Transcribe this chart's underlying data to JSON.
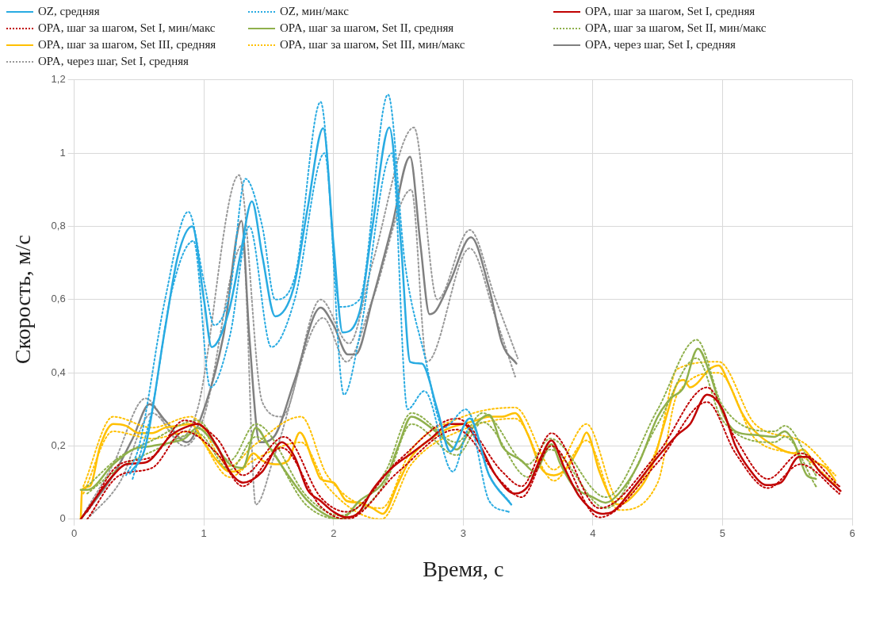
{
  "chart_data": {
    "type": "line",
    "xlabel": "Время, с",
    "ylabel": "Скорость, м/с",
    "xlim": [
      0,
      6
    ],
    "xticks": [
      0,
      1,
      2,
      3,
      4,
      5,
      6
    ],
    "ylim": [
      0,
      1.2
    ],
    "yticks": [
      0,
      {
        "value": 0.2,
        "label": "0,2"
      },
      {
        "value": 0.4,
        "label": "0,4"
      },
      {
        "value": 0.6,
        "label": "0,6"
      },
      {
        "value": 0.8,
        "label": "0,8"
      },
      1,
      {
        "value": 1.2,
        "label": "1,2"
      }
    ],
    "grid": true,
    "legend": "top",
    "marker": "none",
    "line_style": "solid",
    "series": [
      {
        "name": "OZ, средняя",
        "color": "#29abe2",
        "x": [
          0.43,
          0.55,
          0.7,
          0.8,
          0.91,
          1.0,
          1.06,
          1.19,
          1.28,
          1.37,
          1.45,
          1.55,
          1.69,
          1.8,
          1.92,
          2.0,
          2.07,
          2.2,
          2.3,
          2.43,
          2.52,
          2.59,
          2.68,
          2.8,
          2.9,
          3.05,
          3.2,
          3.37
        ],
        "values": [
          0.125,
          0.2,
          0.52,
          0.72,
          0.8,
          0.6,
          0.47,
          0.565,
          0.72,
          0.868,
          0.72,
          0.554,
          0.63,
          0.85,
          1.068,
          0.75,
          0.51,
          0.565,
          0.8,
          1.07,
          0.75,
          0.43,
          0.425,
          0.3,
          0.185,
          0.275,
          0.12,
          0.04
        ]
      },
      {
        "name": "OZ, мин/макс",
        "color": "#29abe2",
        "line_style": "dotted",
        "x": [
          0.4,
          0.5,
          0.7,
          0.88,
          1.0,
          1.08,
          1.2,
          1.32,
          1.45,
          1.55,
          1.7,
          1.9,
          2.05,
          2.2,
          2.42,
          2.55,
          2.7,
          2.85,
          3.02,
          3.2,
          3.35
        ],
        "values": [
          0.12,
          0.2,
          0.6,
          0.84,
          0.65,
          0.53,
          0.62,
          0.93,
          0.8,
          0.6,
          0.66,
          1.14,
          0.58,
          0.6,
          1.16,
          0.7,
          0.45,
          0.25,
          0.3,
          0.12,
          0.05
        ]
      },
      {
        "color": "#29abe2",
        "line_style": "dotted",
        "x": [
          0.45,
          0.6,
          0.75,
          0.92,
          1.05,
          1.2,
          1.35,
          1.52,
          1.7,
          1.93,
          2.08,
          2.2,
          2.45,
          2.57,
          2.7,
          2.92,
          3.05,
          3.2,
          3.35
        ],
        "values": [
          0.11,
          0.3,
          0.62,
          0.76,
          0.36,
          0.5,
          0.8,
          0.47,
          0.6,
          1.0,
          0.34,
          0.5,
          1.0,
          0.3,
          0.35,
          0.13,
          0.25,
          0.05,
          0.02
        ]
      },
      {
        "name": "OPA, шаг за шагом, Set I, средняя",
        "color": "#c00000",
        "x": [
          0.05,
          0.3,
          0.4,
          0.55,
          0.75,
          0.85,
          0.95,
          1.1,
          1.2,
          1.3,
          1.45,
          1.6,
          1.7,
          1.8,
          1.9,
          2.0,
          2.1,
          2.2,
          2.3,
          2.45,
          2.6,
          2.75,
          2.9,
          3.0,
          3.1,
          3.25,
          3.4,
          3.5,
          3.6,
          3.68,
          3.78,
          3.9,
          4.07,
          4.15,
          4.3,
          4.5,
          4.65,
          4.75,
          4.88,
          5.0,
          5.1,
          5.2,
          5.34,
          5.45,
          5.59,
          5.65,
          5.75,
          5.91
        ],
        "values": [
          0,
          0.12,
          0.15,
          0.155,
          0.23,
          0.25,
          0.26,
          0.2,
          0.13,
          0.1,
          0.13,
          0.21,
          0.17,
          0.08,
          0.05,
          0.02,
          0.005,
          0.02,
          0.08,
          0.14,
          0.18,
          0.22,
          0.26,
          0.26,
          0.22,
          0.12,
          0.07,
          0.09,
          0.17,
          0.215,
          0.14,
          0.06,
          0.015,
          0.02,
          0.08,
          0.17,
          0.23,
          0.26,
          0.34,
          0.3,
          0.2,
          0.14,
          0.093,
          0.1,
          0.17,
          0.17,
          0.13,
          0.077
        ]
      },
      {
        "name": "OPA, шаг за шагом, Set I, мин/макс",
        "color": "#c00000",
        "line_style": "dotted",
        "x": [
          0.1,
          0.35,
          0.6,
          0.85,
          1.1,
          1.3,
          1.62,
          1.9,
          2.1,
          2.5,
          2.95,
          3.3,
          3.45,
          3.68,
          4.05,
          4.5,
          4.88,
          5.1,
          5.35,
          5.6,
          5.9
        ],
        "values": [
          0.02,
          0.15,
          0.17,
          0.27,
          0.22,
          0.12,
          0.225,
          0.06,
          0.02,
          0.16,
          0.275,
          0.13,
          0.09,
          0.235,
          0.03,
          0.18,
          0.36,
          0.22,
          0.11,
          0.18,
          0.09
        ]
      },
      {
        "color": "#c00000",
        "line_style": "dotted",
        "x": [
          0.1,
          0.35,
          0.6,
          0.85,
          1.1,
          1.3,
          1.6,
          1.9,
          2.1,
          2.5,
          2.95,
          3.3,
          3.45,
          3.68,
          4.05,
          4.5,
          4.88,
          5.1,
          5.35,
          5.6,
          5.9
        ],
        "values": [
          0,
          0.12,
          0.14,
          0.24,
          0.18,
          0.09,
          0.195,
          0.035,
          0,
          0.13,
          0.245,
          0.1,
          0.06,
          0.2,
          0.005,
          0.155,
          0.32,
          0.18,
          0.085,
          0.15,
          0.07
        ]
      },
      {
        "name": "OPA, шаг за шагом, Set II, средняя",
        "color": "#8fb04c",
        "x": [
          0.05,
          0.1,
          0.3,
          0.45,
          0.6,
          0.75,
          0.85,
          0.95,
          1.05,
          1.2,
          1.3,
          1.4,
          1.5,
          1.65,
          1.8,
          1.95,
          2.05,
          2.2,
          2.4,
          2.5,
          2.6,
          2.75,
          2.85,
          2.95,
          3.05,
          3.2,
          3.3,
          3.45,
          3.55,
          3.68,
          3.75,
          3.85,
          4.0,
          4.1,
          4.2,
          4.35,
          4.5,
          4.6,
          4.7,
          4.81,
          4.9,
          5.0,
          5.1,
          5.25,
          5.4,
          5.48,
          5.55,
          5.65,
          5.72
        ],
        "values": [
          0.08,
          0.08,
          0.15,
          0.19,
          0.2,
          0.21,
          0.22,
          0.25,
          0.22,
          0.15,
          0.14,
          0.25,
          0.2,
          0.12,
          0.05,
          0.01,
          0,
          0.05,
          0.11,
          0.2,
          0.28,
          0.25,
          0.22,
          0.19,
          0.24,
          0.285,
          0.2,
          0.16,
          0.13,
          0.205,
          0.15,
          0.09,
          0.06,
          0.045,
          0.07,
          0.15,
          0.28,
          0.33,
          0.36,
          0.466,
          0.4,
          0.29,
          0.24,
          0.23,
          0.225,
          0.24,
          0.21,
          0.12,
          0.11
        ]
      },
      {
        "name": "OPA, шаг за шагом, Set II, мин/макс",
        "color": "#8fb04c",
        "line_style": "dotted",
        "x": [
          0.1,
          0.35,
          0.6,
          0.95,
          1.2,
          1.4,
          1.8,
          2.05,
          2.4,
          2.6,
          2.95,
          3.15,
          3.5,
          3.67,
          4.1,
          4.5,
          4.8,
          5.0,
          5.4,
          5.48,
          5.72
        ],
        "values": [
          0.09,
          0.17,
          0.215,
          0.27,
          0.16,
          0.26,
          0.06,
          0.01,
          0.13,
          0.29,
          0.21,
          0.29,
          0.15,
          0.22,
          0.06,
          0.3,
          0.49,
          0.31,
          0.24,
          0.255,
          0.12
        ]
      },
      {
        "color": "#8fb04c",
        "line_style": "dotted",
        "x": [
          0.1,
          0.35,
          0.6,
          0.95,
          1.2,
          1.4,
          1.8,
          2.05,
          2.4,
          2.6,
          2.95,
          3.15,
          3.5,
          3.67,
          4.1,
          4.5,
          4.8,
          5.0,
          5.4,
          5.48,
          5.72
        ],
        "values": [
          0.07,
          0.14,
          0.185,
          0.235,
          0.135,
          0.225,
          0.035,
          0,
          0.1,
          0.26,
          0.175,
          0.265,
          0.115,
          0.19,
          0.03,
          0.26,
          0.44,
          0.27,
          0.21,
          0.225,
          0.09
        ]
      },
      {
        "name": "OPA, шаг за шагом, Set III, средняя",
        "color": "#ffc000",
        "x": [
          0.05,
          0.06,
          0.12,
          0.2,
          0.3,
          0.4,
          0.5,
          0.6,
          0.7,
          0.8,
          0.9,
          1.0,
          1.1,
          1.2,
          1.3,
          1.38,
          1.45,
          1.55,
          1.65,
          1.74,
          1.85,
          1.9,
          2.0,
          2.1,
          2.2,
          2.3,
          2.38,
          2.5,
          2.6,
          2.75,
          2.9,
          3.0,
          3.1,
          3.2,
          3.3,
          3.4,
          3.5,
          3.6,
          3.7,
          3.8,
          3.9,
          3.95,
          4.05,
          4.15,
          4.2,
          4.3,
          4.45,
          4.55,
          4.65,
          4.7,
          4.75,
          4.8,
          4.9,
          4.97,
          5.05,
          5.15,
          5.25,
          5.4,
          5.55,
          5.62,
          5.7,
          5.8,
          5.87
        ],
        "values": [
          0,
          0.08,
          0.09,
          0.2,
          0.26,
          0.255,
          0.235,
          0.235,
          0.25,
          0.255,
          0.26,
          0.21,
          0.16,
          0.13,
          0.14,
          0.18,
          0.16,
          0.15,
          0.16,
          0.237,
          0.15,
          0.11,
          0.1,
          0.05,
          0.045,
          0.03,
          0.015,
          0.1,
          0.17,
          0.22,
          0.25,
          0.26,
          0.27,
          0.28,
          0.28,
          0.29,
          0.23,
          0.14,
          0.12,
          0.14,
          0.2,
          0.237,
          0.13,
          0.05,
          0.04,
          0.06,
          0.14,
          0.26,
          0.37,
          0.38,
          0.36,
          0.37,
          0.41,
          0.42,
          0.37,
          0.29,
          0.24,
          0.2,
          0.18,
          0.19,
          0.16,
          0.14,
          0.105
        ]
      },
      {
        "name": "OPA, шаг за шагом, Set III, мин/макс",
        "color": "#ffc000",
        "line_style": "dotted",
        "x": [
          0.07,
          0.3,
          0.6,
          0.9,
          1.2,
          1.38,
          1.75,
          1.95,
          2.37,
          2.6,
          3.0,
          3.4,
          3.7,
          3.95,
          4.2,
          4.5,
          4.65,
          4.97,
          5.25,
          5.62,
          5.87
        ],
        "values": [
          0.09,
          0.28,
          0.25,
          0.28,
          0.145,
          0.2,
          0.28,
          0.12,
          0.03,
          0.19,
          0.28,
          0.305,
          0.135,
          0.26,
          0.055,
          0.2,
          0.41,
          0.43,
          0.26,
          0.21,
          0.12
        ]
      },
      {
        "color": "#ffc000",
        "line_style": "dotted",
        "x": [
          0.07,
          0.3,
          0.6,
          0.9,
          1.2,
          1.38,
          1.75,
          1.95,
          2.37,
          2.6,
          3.0,
          3.4,
          3.7,
          3.95,
          4.2,
          4.5,
          4.65,
          4.97,
          5.25,
          5.62,
          5.87
        ],
        "values": [
          0.07,
          0.24,
          0.22,
          0.24,
          0.115,
          0.16,
          0.21,
          0.09,
          0,
          0.15,
          0.245,
          0.275,
          0.105,
          0.215,
          0.025,
          0.1,
          0.34,
          0.4,
          0.22,
          0.17,
          0.095
        ]
      },
      {
        "name": "OPA, через шаг, Set I, средняя",
        "color": "#808080",
        "x": [
          0.05,
          0.3,
          0.45,
          0.58,
          0.7,
          0.87,
          1.0,
          1.15,
          1.29,
          1.35,
          1.43,
          1.54,
          1.7,
          1.9,
          2.0,
          2.11,
          2.17,
          2.3,
          2.45,
          2.59,
          2.67,
          2.74,
          2.79,
          2.9,
          3.06,
          3.2,
          3.3,
          3.41
        ],
        "values": [
          0,
          0.12,
          0.22,
          0.314,
          0.27,
          0.21,
          0.3,
          0.5,
          0.815,
          0.5,
          0.21,
          0.225,
          0.38,
          0.578,
          0.53,
          0.45,
          0.45,
          0.6,
          0.8,
          0.99,
          0.75,
          0.56,
          0.57,
          0.65,
          0.77,
          0.63,
          0.48,
          0.425
        ]
      },
      {
        "name": "OPA, через шаг, Set I, средняя",
        "color": "#999999",
        "line_style": "dotted",
        "x": [
          0.05,
          0.3,
          0.55,
          0.8,
          0.95,
          1.27,
          1.45,
          1.6,
          1.9,
          2.12,
          2.3,
          2.62,
          2.8,
          3.05,
          3.25,
          3.42
        ],
        "values": [
          0,
          0.15,
          0.33,
          0.22,
          0.3,
          0.94,
          0.32,
          0.28,
          0.6,
          0.48,
          0.7,
          1.07,
          0.6,
          0.79,
          0.6,
          0.44
        ]
      },
      {
        "color": "#999999",
        "line_style": "dotted",
        "x": [
          0.1,
          0.35,
          0.6,
          0.85,
          1.0,
          1.3,
          1.4,
          1.55,
          1.92,
          2.1,
          2.3,
          2.6,
          2.72,
          3.05,
          3.25,
          3.4
        ],
        "values": [
          0,
          0.1,
          0.29,
          0.2,
          0.28,
          0.75,
          0.04,
          0.18,
          0.55,
          0.43,
          0.6,
          0.9,
          0.43,
          0.74,
          0.55,
          0.39
        ]
      }
    ]
  }
}
